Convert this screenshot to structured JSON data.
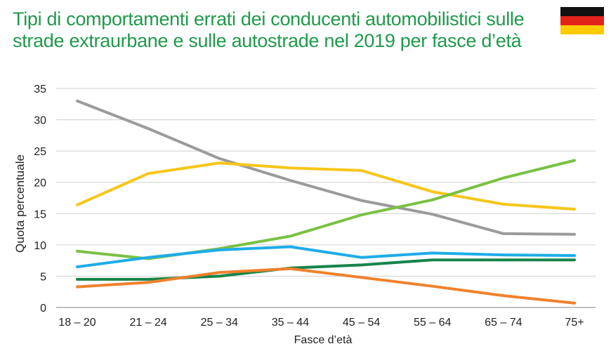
{
  "title": {
    "line1": "Tipi di comportamenti errati dei conducenti automobilistici sulle",
    "line2": "strade extraurbane e sulle autostrade nel 2019 per fasce d’età"
  },
  "flag": {
    "colors": [
      "#111111",
      "#e2231a",
      "#ffcc00"
    ]
  },
  "chart_data": {
    "type": "line",
    "categories": [
      "18 – 20",
      "21 – 24",
      "25 – 34",
      "35 – 44",
      "45 – 54",
      "55 – 64",
      "65 – 74",
      "75+"
    ],
    "xlabel": "Fasce d’età",
    "ylabel": "Quota percentuale",
    "ylim": [
      0,
      35
    ],
    "yticks": [
      0,
      5,
      10,
      15,
      20,
      25,
      30,
      35
    ],
    "grid": true,
    "legend": "none",
    "series": [
      {
        "color": "#9b9b9b",
        "values": [
          33,
          28.6,
          23.8,
          20.3,
          17.1,
          14.9,
          11.8,
          11.7
        ]
      },
      {
        "color": "#f6c619",
        "values": [
          16.4,
          21.4,
          23.1,
          22.3,
          21.9,
          18.5,
          16.5,
          15.7
        ]
      },
      {
        "color": "#7ac143",
        "values": [
          9.0,
          7.8,
          9.4,
          11.4,
          14.8,
          17.2,
          20.7,
          23.5
        ]
      },
      {
        "color": "#1eace8",
        "values": [
          6.5,
          8.0,
          9.2,
          9.7,
          8.0,
          8.7,
          8.4,
          8.3
        ]
      },
      {
        "color": "#16844a",
        "values": [
          4.5,
          4.5,
          5.0,
          6.3,
          6.8,
          7.6,
          7.6,
          7.6
        ]
      },
      {
        "color": "#f0812d",
        "values": [
          3.3,
          4.0,
          5.6,
          6.2,
          4.8,
          3.4,
          1.9,
          0.7
        ]
      }
    ]
  }
}
